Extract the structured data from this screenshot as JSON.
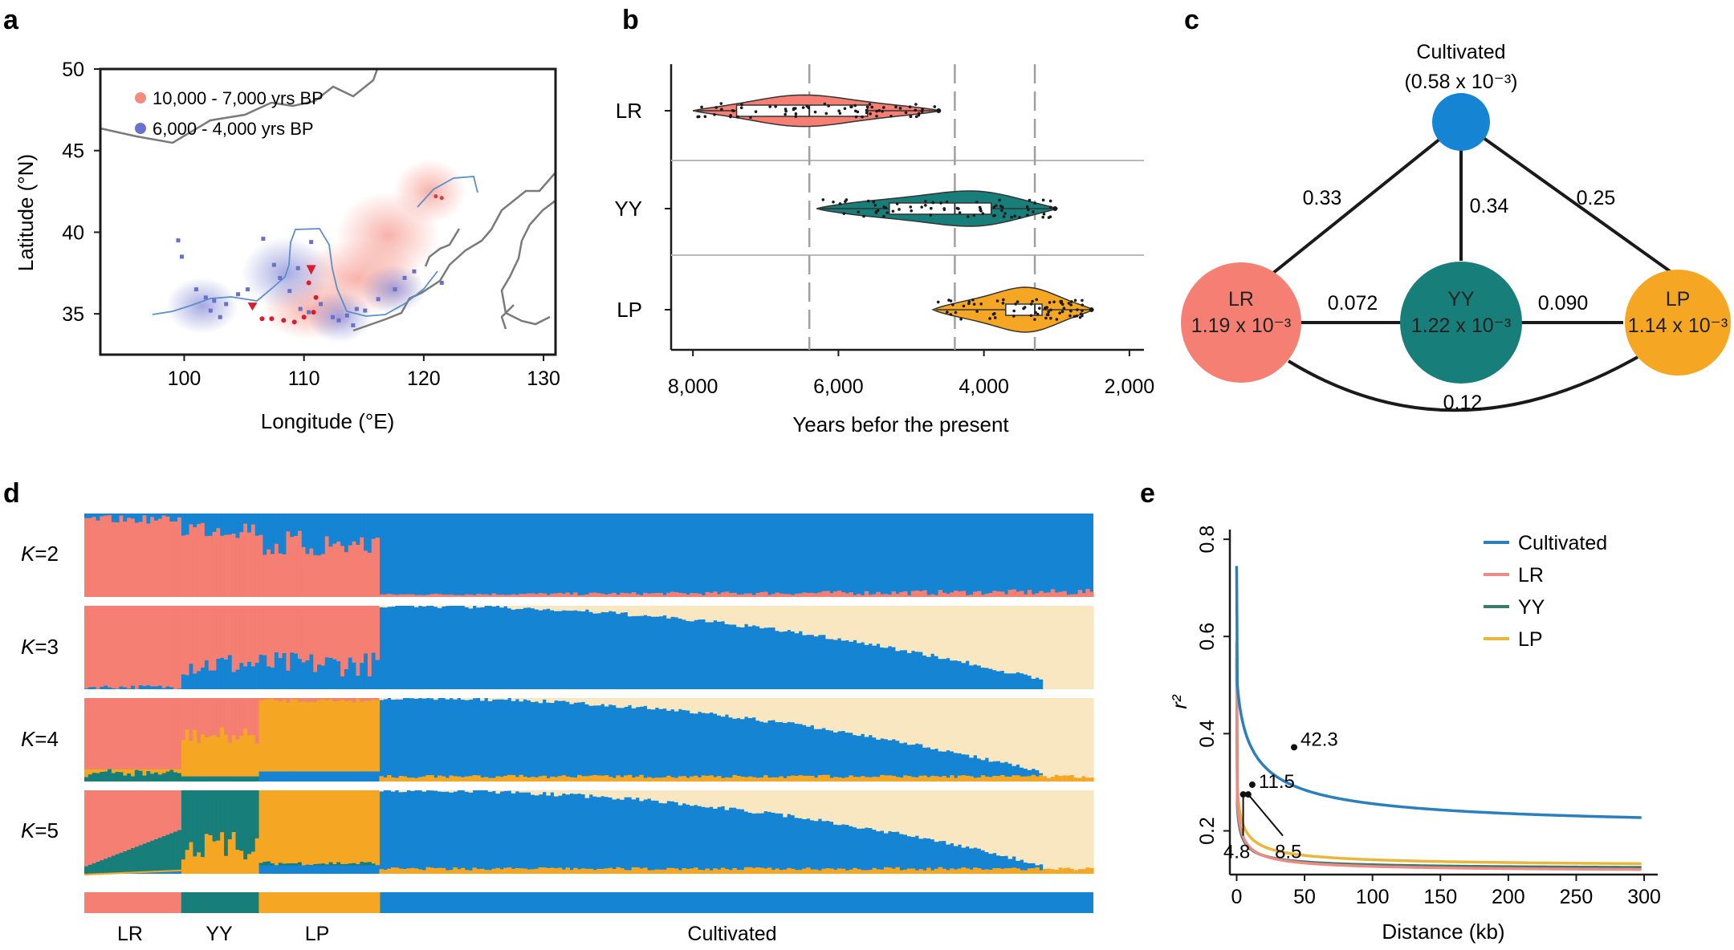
{
  "panels": {
    "a": "a",
    "b": "b",
    "c": "c",
    "d": "d",
    "e": "e"
  },
  "colors": {
    "lr": "#f47f72",
    "yy": "#177e7a",
    "lp": "#f5a623",
    "cultivated": "#1584d2",
    "cream": "#f8e7c0"
  },
  "chart_data": [
    {
      "panel": "a",
      "type": "scatter",
      "title": "",
      "xlabel": "Longitude (°E)",
      "ylabel": "Latitude (°N)",
      "xlim": [
        93,
        131
      ],
      "ylim": [
        32.5,
        50
      ],
      "xticks": [
        "100",
        "110",
        "120",
        "130"
      ],
      "yticks": [
        "35",
        "40",
        "45",
        "50"
      ],
      "legend": [
        {
          "label": "10,000 - 7,000 yrs BP",
          "color": "#f47f72"
        },
        {
          "label": "6,000 - 4,000 yrs BP",
          "color": "#6a70c8"
        }
      ],
      "legend_position": "top-left"
    },
    {
      "panel": "b",
      "type": "violin",
      "xlabel": "Years befor the present",
      "categories": [
        "LR",
        "YY",
        "LP"
      ],
      "xlim": [
        8300,
        1800
      ],
      "xticks": [
        "8,000",
        "6,000",
        "4,000",
        "2,000"
      ],
      "ranges": [
        [
          8000,
          4600
        ],
        [
          6300,
          3000
        ],
        [
          4700,
          2500
        ]
      ],
      "boxes": [
        [
          7400,
          5600
        ],
        [
          5300,
          3900
        ],
        [
          3700,
          3200
        ]
      ],
      "medians": [
        6400,
        4400,
        3300
      ],
      "reference_lines": [
        6400,
        4400,
        3300
      ]
    },
    {
      "panel": "c",
      "type": "network",
      "nodes": [
        {
          "id": "Cultivated",
          "label": "Cultivated",
          "diversity": "(0.58 x 10⁻³)",
          "color": "#1584d2"
        },
        {
          "id": "LR",
          "label": "LR",
          "diversity": "1.19 x 10⁻³",
          "color": "#f47f72"
        },
        {
          "id": "YY",
          "label": "YY",
          "diversity": "1.22 x 10⁻³",
          "color": "#177e7a"
        },
        {
          "id": "LP",
          "label": "LP",
          "diversity": "1.14 x 10⁻³",
          "color": "#f5a623"
        }
      ],
      "edges": [
        {
          "from": "Cultivated",
          "to": "LR",
          "value": "0.33"
        },
        {
          "from": "Cultivated",
          "to": "YY",
          "value": "0.34"
        },
        {
          "from": "Cultivated",
          "to": "LP",
          "value": "0.25"
        },
        {
          "from": "LR",
          "to": "YY",
          "value": "0.072"
        },
        {
          "from": "YY",
          "to": "LP",
          "value": "0.090"
        },
        {
          "from": "LR",
          "to": "LP",
          "value": "0.12"
        }
      ]
    },
    {
      "panel": "d",
      "type": "admixture",
      "rows": [
        {
          "k_label": "K",
          "k_value": "=2"
        },
        {
          "k_label": "K",
          "k_value": "=3"
        },
        {
          "k_label": "K",
          "k_value": "=4"
        },
        {
          "k_label": "K",
          "k_value": "=5"
        }
      ],
      "groups": [
        "LR",
        "YY",
        "LP",
        "Cultivated"
      ],
      "group_fractions": [
        0.096,
        0.077,
        0.12,
        0.707
      ]
    },
    {
      "panel": "e",
      "type": "line",
      "xlabel": "Distance (kb)",
      "ylabel": "r²",
      "xlim": [
        -5,
        310
      ],
      "ylim": [
        0.11,
        0.82
      ],
      "xticks": [
        "0",
        "50",
        "100",
        "150",
        "200",
        "250",
        "300"
      ],
      "yticks": [
        "0.2",
        "0.4",
        "0.6",
        "0.8"
      ],
      "series": [
        {
          "name": "Cultivated",
          "color": "#2b7fbd",
          "start": 0.745,
          "plateau": 0.2,
          "c": 0.33,
          "d": 12,
          "p": 0.75
        },
        {
          "name": "LR",
          "color": "#ec8a86",
          "start": 0.585,
          "plateau": 0.115,
          "c": 0.21,
          "d": 2,
          "p": 0.72
        },
        {
          "name": "YY",
          "color": "#3b7a6a",
          "start": 0.555,
          "plateau": 0.12,
          "c": 0.18,
          "d": 2,
          "p": 0.72
        },
        {
          "name": "LP",
          "color": "#e9b73c",
          "start": 0.59,
          "plateau": 0.125,
          "c": 0.21,
          "d": 3,
          "p": 0.72
        }
      ],
      "annotations": [
        {
          "label": "42.3",
          "x": 42.3,
          "y": 0.372
        },
        {
          "label": "11.5",
          "x": 11.5,
          "y": 0.295
        },
        {
          "label": "4.8",
          "x": 4.8,
          "y": 0.275
        },
        {
          "label": "8.5",
          "x": 8.5,
          "y": 0.275
        }
      ]
    }
  ]
}
